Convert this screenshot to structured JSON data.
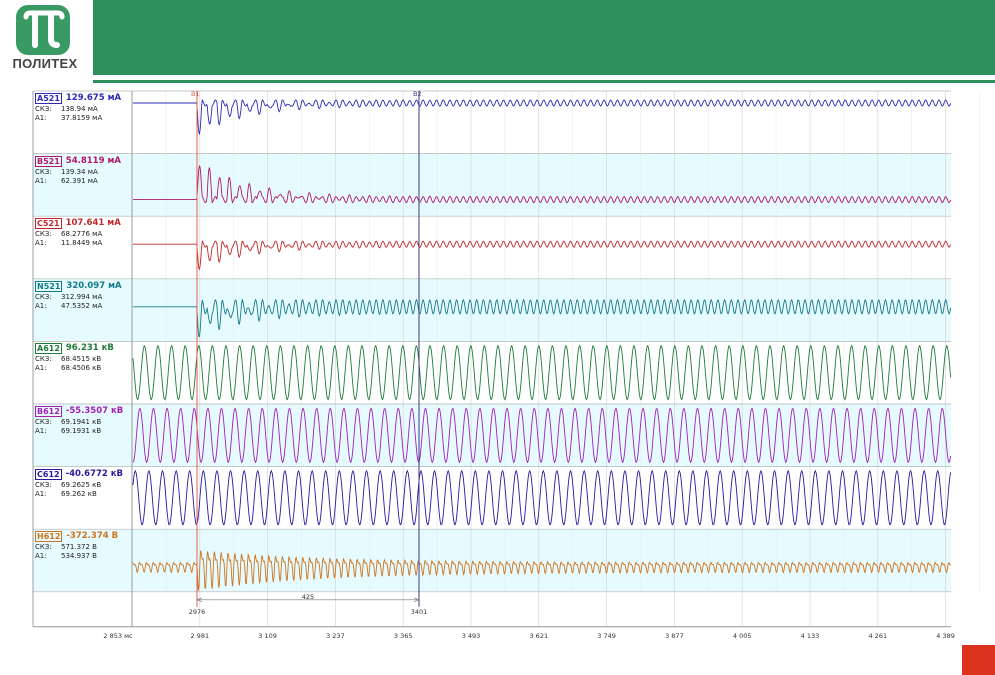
{
  "header": {
    "logo_text": "ПОЛИТЕХ",
    "logo_glyph": "π"
  },
  "cursors": {
    "b1_label": "B1",
    "b2_label": "B2",
    "b1_time": "2976",
    "b2_time": "3401",
    "delta": "425"
  },
  "axis": {
    "ticks": [
      "2 853 мс",
      "2 981",
      "3 109",
      "3 237",
      "3 365",
      "3 493",
      "3 621",
      "3 749",
      "3 877",
      "4 005",
      "4 133",
      "4 261",
      "4 389"
    ]
  },
  "channels": [
    {
      "name": "A521",
      "value": "129.675 мА",
      "sk3_label": "СКЗ:",
      "sk3": "138.94  мА",
      "a1_label": "A1:",
      "a1": "37.8159 мА",
      "color": "#2b2bb8",
      "bg": "#ffffff",
      "type": "current"
    },
    {
      "name": "B521",
      "value": "54.8119 мА",
      "sk3_label": "СКЗ:",
      "sk3": "139.34  мА",
      "a1_label": "A1:",
      "a1": "62.391  мА",
      "color": "#b0186a",
      "bg": "#e6fbff",
      "type": "current"
    },
    {
      "name": "C521",
      "value": "107.641 мА",
      "sk3_label": "СКЗ:",
      "sk3": "68.2776 мА",
      "a1_label": "A1:",
      "a1": "11.8449 мА",
      "color": "#c0282a",
      "bg": "#ffffff",
      "type": "current"
    },
    {
      "name": "N521",
      "value": "320.097 мА",
      "sk3_label": "СКЗ:",
      "sk3": "312.994 мА",
      "a1_label": "A1:",
      "a1": "47.5352 мА",
      "color": "#137a87",
      "bg": "#e6fbff",
      "type": "current"
    },
    {
      "name": "A612",
      "value": "96.231 кВ",
      "sk3_label": "СКЗ:",
      "sk3": "68.4515 кВ",
      "a1_label": "A1:",
      "a1": "68.4506 кВ",
      "color": "#1f7a3a",
      "bg": "#ffffff",
      "type": "voltage"
    },
    {
      "name": "B612",
      "value": "-55.3507 кВ",
      "sk3_label": "СКЗ:",
      "sk3": "69.1941 кВ",
      "a1_label": "A1:",
      "a1": "69.1931 кВ",
      "color": "#a31fb8",
      "bg": "#e6fbff",
      "type": "voltage"
    },
    {
      "name": "C612",
      "value": "-40.6772 кВ",
      "sk3_label": "СКЗ:",
      "sk3": "69.2625 кВ",
      "a1_label": "A1:",
      "a1": "69.262  кВ",
      "color": "#2a1aa0",
      "bg": "#ffffff",
      "type": "voltage"
    },
    {
      "name": "H612",
      "value": "-372.374 В",
      "sk3_label": "СКЗ:",
      "sk3": "571.372 В",
      "a1_label": "A1:",
      "a1": "534.937 В",
      "color": "#d0741c",
      "bg": "#e6fbff",
      "type": "neutral"
    }
  ]
}
